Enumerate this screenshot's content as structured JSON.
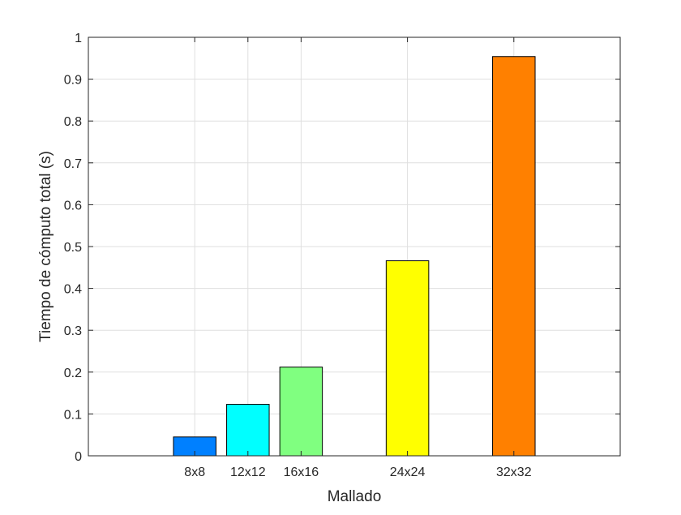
{
  "chart_data": {
    "type": "bar",
    "xlabel": "Mallado",
    "ylabel": "Tiempo de cómputo total (s)",
    "ylim": [
      0,
      1
    ],
    "xlim": [
      0,
      40
    ],
    "grid": true,
    "yticks": [
      "0",
      "0.1",
      "0.2",
      "0.3",
      "0.4",
      "0.5",
      "0.6",
      "0.7",
      "0.8",
      "0.9",
      "1"
    ],
    "categories": [
      "8x8",
      "12x12",
      "16x16",
      "24x24",
      "32x32"
    ],
    "x": [
      8,
      12,
      16,
      24,
      32
    ],
    "values": [
      0.045,
      0.123,
      0.212,
      0.466,
      0.954
    ],
    "colors": [
      "#0080ff",
      "#00ffff",
      "#80ff80",
      "#ffff00",
      "#ff8000"
    ]
  }
}
